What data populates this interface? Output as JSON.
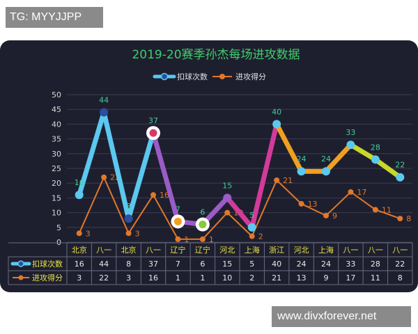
{
  "watermarks": {
    "top": "TG: MYYJJPP",
    "bottom": "www.divxforever.net"
  },
  "chart_data": {
    "type": "line",
    "title": "2019-20赛季孙杰每场进攻数据",
    "categories": [
      "北京",
      "八一",
      "北京",
      "八一",
      "辽宁",
      "辽宁",
      "河北",
      "上海",
      "浙江",
      "河北",
      "上海",
      "八一",
      "八一",
      "八一"
    ],
    "ylim": [
      0,
      50
    ],
    "yticks": [
      0,
      5,
      10,
      15,
      20,
      25,
      30,
      35,
      40,
      45,
      50
    ],
    "legend_position": "top-center",
    "grid": true,
    "series": [
      {
        "name": "扣球次数",
        "values": [
          16,
          44,
          8,
          37,
          7,
          6,
          15,
          5,
          40,
          24,
          24,
          33,
          28,
          22
        ],
        "color": "#5bc8f0",
        "label_color": "#3fcf9a",
        "segment_colors": [
          "#5bc8f0",
          "#5bc8f0",
          "#5bc8f0",
          "#9a5cc6",
          "#9a5cc6",
          "#9a5cc6",
          "#d33a9a",
          "#d33a9a",
          "#f0a020",
          "#f0a020",
          "#f0a020",
          "#c8d82a",
          "#c8d82a"
        ],
        "marker_colors": [
          "#5bc8f0",
          "#2b4ea0",
          "#2b4ea0",
          "#d33a6a",
          "#f0a020",
          "#8ac83a",
          "#9a5cc6",
          "#5bc8f0",
          "#5bc8f0",
          "#5bc8f0",
          "#5bc8f0",
          "#5bc8f0",
          "#5bc8f0",
          "#5bc8f0"
        ]
      },
      {
        "name": "进攻得分",
        "values": [
          3,
          22,
          3,
          16,
          1,
          1,
          10,
          2,
          21,
          13,
          9,
          17,
          11,
          8
        ],
        "color": "#e2782a",
        "label_color": "#e2782a"
      }
    ]
  }
}
